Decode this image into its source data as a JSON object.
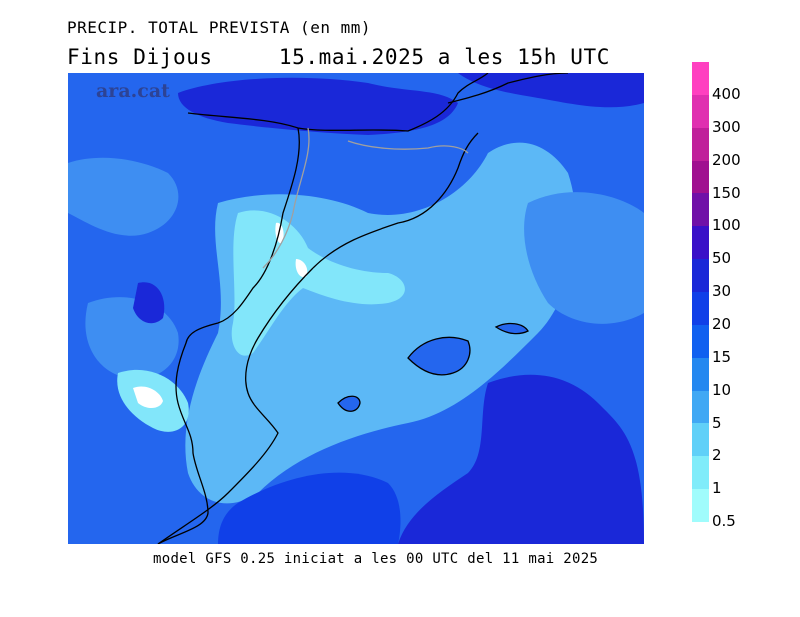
{
  "header": {
    "line1": "PRECIP. TOTAL PREVISTA (en mm)",
    "line2": "Fins Dijous     15.mai.2025 a les 15h UTC"
  },
  "watermark": "ara.cat",
  "footer": "model GFS 0.25 iniciat a les 00 UTC del 11 mai 2025",
  "legend": {
    "labels": [
      "400",
      "300",
      "200",
      "150",
      "100",
      "50",
      "30",
      "20",
      "15",
      "10",
      "5",
      "2",
      "1",
      "0.5"
    ],
    "colors": [
      "#ff40c0",
      "#e030b0",
      "#c0209a",
      "#a01090",
      "#7010a8",
      "#3a10c8",
      "#1a28d8",
      "#1040e8",
      "#1060f0",
      "#2488f0",
      "#40a8f4",
      "#60d0f8",
      "#80ecfa",
      "#a0fcfc"
    ]
  },
  "map_colors": {
    "deep": "#1a28d8",
    "dark": "#1040e8",
    "mid": "#2466ee",
    "light": "#3e8ef2",
    "pale": "#5cb8f6",
    "cyan": "#82e6fa",
    "white": "#ffffff",
    "coast": "#000000",
    "border": "#a0a0a0"
  }
}
